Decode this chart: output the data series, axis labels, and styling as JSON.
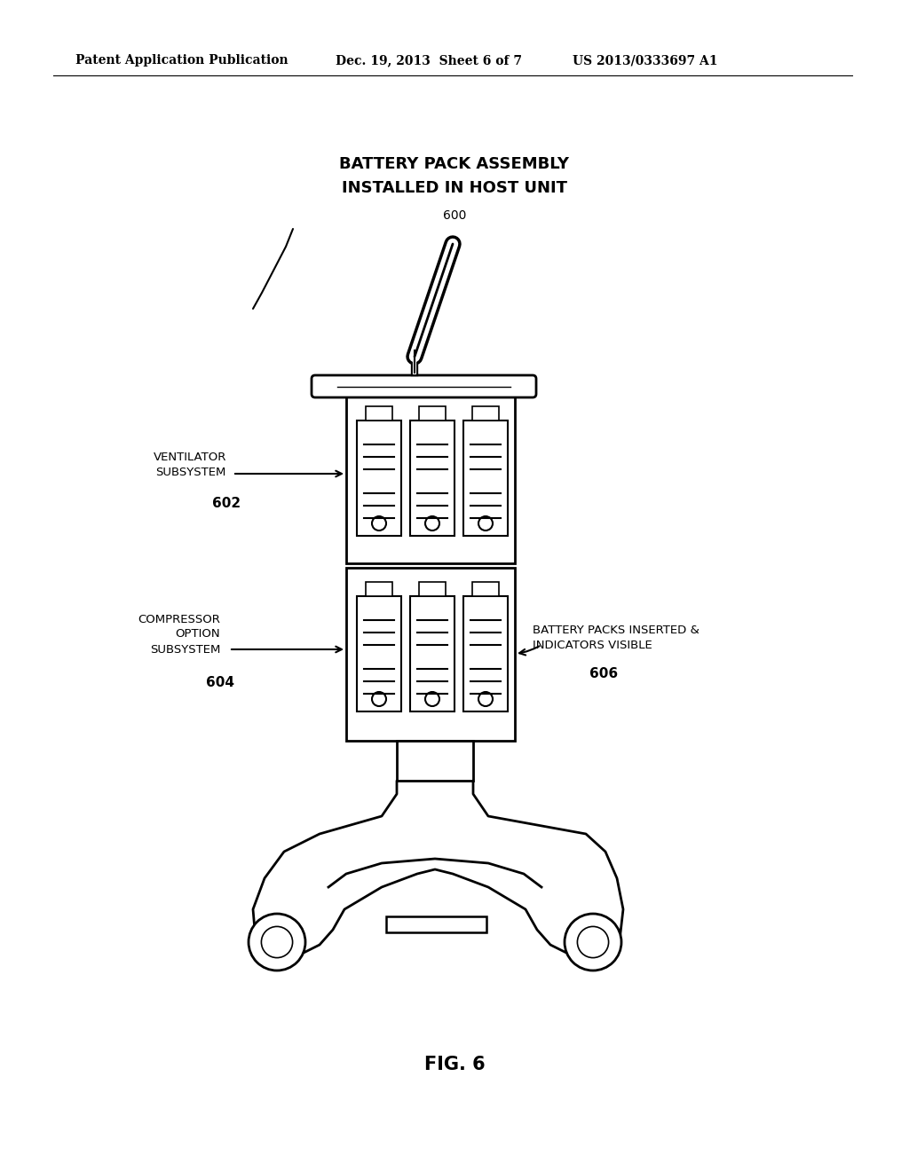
{
  "bg_color": "#ffffff",
  "header_left": "Patent Application Publication",
  "header_center": "Dec. 19, 2013  Sheet 6 of 7",
  "header_right": "US 2013/0333697 A1",
  "title_line1": "BATTERY PACK ASSEMBLY",
  "title_line2": "INSTALLED IN HOST UNIT",
  "fig_label": "FIG. 6",
  "label_600": "600",
  "label_602": "602",
  "label_604": "604",
  "label_606": "606",
  "text_ventilator": "VENTILATOR\nSUBSYSTEM",
  "text_compressor": "COMPRESSOR\nOPTION\nSUBSYSTEM",
  "text_battery": "BATTERY PACKS INSERTED &\nINDICATORS VISIBLE"
}
